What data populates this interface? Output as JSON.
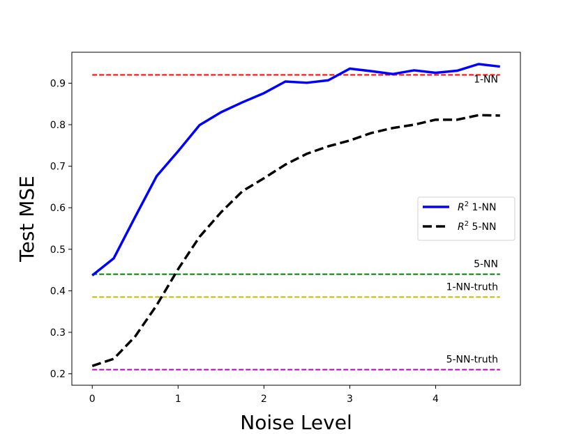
{
  "chart_data": {
    "type": "line",
    "title": "",
    "xlabel": "Noise Level",
    "ylabel": "Test MSE",
    "xlim": [
      -0.2375,
      4.9875
    ],
    "ylim": [
      0.1725,
      0.9745
    ],
    "xticks": [
      0,
      1,
      2,
      3,
      4
    ],
    "xtick_labels": [
      "0",
      "1",
      "2",
      "3",
      "4"
    ],
    "yticks": [
      0.2,
      0.3,
      0.4,
      0.5,
      0.6,
      0.7,
      0.8,
      0.9
    ],
    "ytick_labels": [
      "0.2",
      "0.3",
      "0.4",
      "0.5",
      "0.6",
      "0.7",
      "0.8",
      "0.9"
    ],
    "grid": false,
    "legend_position": "right",
    "series": [
      {
        "name": "R² 1-NN",
        "label_prefix": "R",
        "label_sup": "2",
        "label_suffix": " 1-NN",
        "color": "#0000ff",
        "style": "solid",
        "x": [
          0,
          0.25,
          0.5,
          0.75,
          1.0,
          1.25,
          1.5,
          1.75,
          2.0,
          2.25,
          2.5,
          2.75,
          3.0,
          3.25,
          3.5,
          3.75,
          4.0,
          4.25,
          4.5,
          4.75
        ],
        "values": [
          0.437,
          0.478,
          0.578,
          0.676,
          0.736,
          0.799,
          0.83,
          0.854,
          0.876,
          0.904,
          0.901,
          0.907,
          0.935,
          0.929,
          0.922,
          0.931,
          0.925,
          0.93,
          0.946,
          0.94
        ]
      },
      {
        "name": "R² 5-NN",
        "label_prefix": "R",
        "label_sup": "2",
        "label_suffix": " 5-NN",
        "color": "#000000",
        "style": "dashed",
        "x": [
          0,
          0.25,
          0.5,
          0.75,
          1.0,
          1.25,
          1.5,
          1.75,
          2.0,
          2.25,
          2.5,
          2.75,
          3.0,
          3.25,
          3.5,
          3.75,
          4.0,
          4.25,
          4.5,
          4.75
        ],
        "values": [
          0.219,
          0.236,
          0.29,
          0.365,
          0.452,
          0.53,
          0.589,
          0.64,
          0.671,
          0.704,
          0.73,
          0.748,
          0.762,
          0.78,
          0.792,
          0.8,
          0.812,
          0.812,
          0.823,
          0.822
        ]
      }
    ],
    "reference_lines": [
      {
        "name": "1-NN",
        "y": 0.92,
        "color": "#ff0000",
        "label_anchor": "below"
      },
      {
        "name": "5-NN",
        "y": 0.44,
        "color": "#008000",
        "label_anchor": "above"
      },
      {
        "name": "1-NN-truth",
        "y": 0.385,
        "color": "#bfbf00",
        "label_anchor": "above"
      },
      {
        "name": "5-NN-truth",
        "y": 0.21,
        "color": "#bf00bf",
        "label_anchor": "above"
      }
    ]
  }
}
